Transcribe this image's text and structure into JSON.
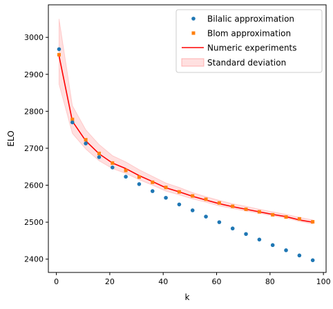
{
  "chart_data": {
    "type": "line",
    "title": "",
    "xlabel": "k",
    "ylabel": "ELO",
    "xlim": [
      -3,
      101
    ],
    "ylim": [
      2364,
      3088
    ],
    "xticks": [
      0,
      20,
      40,
      60,
      80,
      100
    ],
    "yticks": [
      2400,
      2500,
      2600,
      2700,
      2800,
      2900,
      3000
    ],
    "grid": false,
    "legend_position": "top-right",
    "x": [
      1,
      6,
      11,
      16,
      21,
      26,
      31,
      36,
      41,
      46,
      51,
      56,
      61,
      66,
      71,
      76,
      81,
      86,
      91,
      96
    ],
    "series": [
      {
        "name": "Bilalic approximation",
        "style": "dots",
        "color": "#1f77b4",
        "values": [
          2968,
          2770,
          2713,
          2676,
          2648,
          2623,
          2603,
          2584,
          2566,
          2548,
          2532,
          2515,
          2500,
          2483,
          2468,
          2453,
          2438,
          2424,
          2410,
          2397
        ]
      },
      {
        "name": "Blom approximation",
        "style": "squares",
        "color": "#ff7f0e",
        "values": [
          2953,
          2778,
          2723,
          2686,
          2660,
          2640,
          2622,
          2608,
          2594,
          2582,
          2571,
          2562,
          2552,
          2543,
          2535,
          2528,
          2520,
          2514,
          2509,
          2501
        ]
      },
      {
        "name": "Numeric experiments",
        "style": "line",
        "color": "#ff0000",
        "values": [
          2950,
          2773,
          2720,
          2685,
          2660,
          2645,
          2626,
          2610,
          2593,
          2582,
          2570,
          2560,
          2550,
          2542,
          2535,
          2528,
          2521,
          2515,
          2506,
          2500
        ]
      }
    ],
    "band": {
      "name": "Standard deviation",
      "color": "#ff0000",
      "lower": [
        2873,
        2740,
        2698,
        2666,
        2645,
        2632,
        2615,
        2600,
        2584,
        2574,
        2563,
        2554,
        2544,
        2537,
        2530,
        2524,
        2517,
        2511,
        2502,
        2495
      ],
      "upper": [
        3050,
        2815,
        2750,
        2710,
        2680,
        2663,
        2642,
        2624,
        2606,
        2594,
        2580,
        2569,
        2559,
        2550,
        2543,
        2535,
        2528,
        2521,
        2513,
        2506
      ]
    }
  }
}
